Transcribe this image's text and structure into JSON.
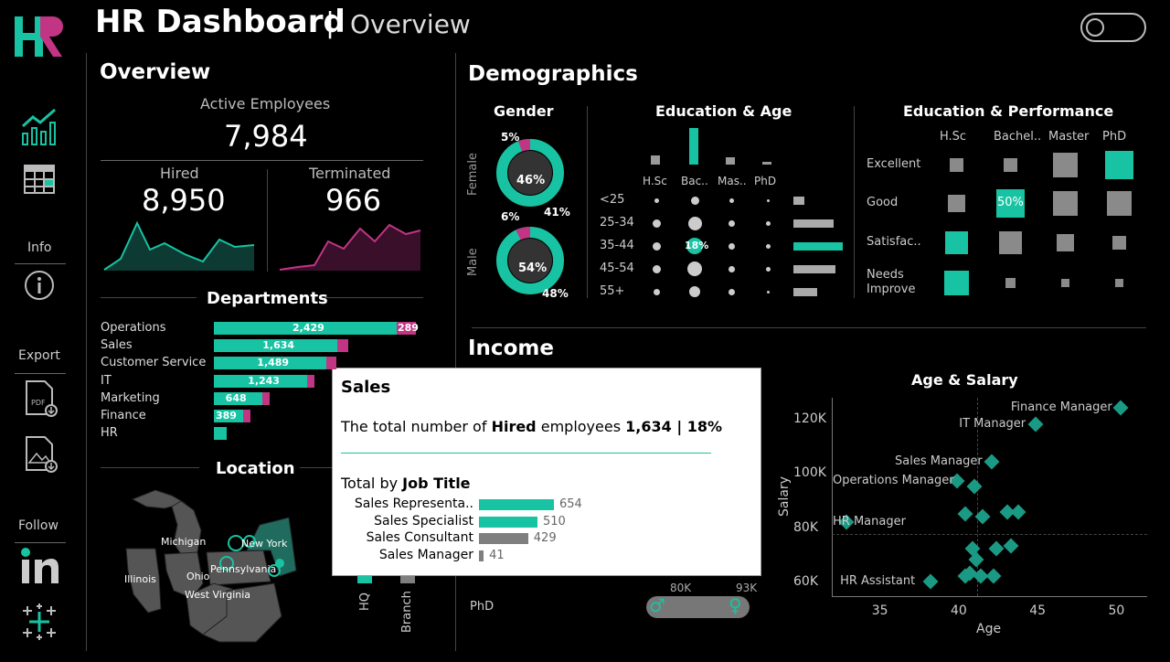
{
  "header": {
    "logo": "HR",
    "title": "HR Dashboard",
    "separator": "|",
    "subtitle": "Overview"
  },
  "sidebar": {
    "info_label": "Info",
    "export_label": "Export",
    "follow_label": "Follow",
    "icons": [
      "line-chart-icon",
      "table-icon",
      "info-icon",
      "pdf-icon",
      "image-download-icon",
      "linkedin-icon",
      "tableau-icon"
    ]
  },
  "overview": {
    "title": "Overview",
    "active_label": "Active Employees",
    "active_value": "7,984",
    "hired_label": "Hired",
    "hired_value": "8,950",
    "terminated_label": "Terminated",
    "terminated_value": "966"
  },
  "departments": {
    "title": "Departments",
    "items": [
      {
        "name": "Operations",
        "hired": 2429,
        "hired_label": "2,429",
        "terminated": 289,
        "terminated_label": "289"
      },
      {
        "name": "Sales",
        "hired": 1634,
        "hired_label": "1,634",
        "terminated": 170,
        "terminated_label": ""
      },
      {
        "name": "Customer Service",
        "hired": 1489,
        "hired_label": "1,489",
        "terminated": 160,
        "terminated_label": ""
      },
      {
        "name": "IT",
        "hired": 1243,
        "hired_label": "1,243",
        "terminated": 110,
        "terminated_label": ""
      },
      {
        "name": "Marketing",
        "hired": 648,
        "hired_label": "648",
        "terminated": 60,
        "terminated_label": ""
      },
      {
        "name": "Finance",
        "hired": 389,
        "hired_label": "389",
        "terminated": 40,
        "terminated_label": ""
      },
      {
        "name": "HR",
        "hired": 140,
        "hired_label": "",
        "terminated": 0,
        "terminated_label": ""
      }
    ]
  },
  "location": {
    "title": "Location",
    "states": [
      "Michigan",
      "New York",
      "Illinois",
      "Ohio",
      "Pennsylvania",
      "West Virginia"
    ],
    "hq_label": "HQ",
    "branch_label": "Branch"
  },
  "demographics": {
    "title": "Demographics",
    "gender": {
      "title": "Gender",
      "female_label": "Female",
      "male_label": "Male",
      "female": {
        "center": "46%",
        "small": "5%",
        "outer": "41%"
      },
      "male": {
        "center": "54%",
        "small": "6%",
        "outer": "48%"
      }
    },
    "edu_age": {
      "title": "Education & Age",
      "edu_cols": [
        "H.Sc",
        "Bac..",
        "Mas..",
        "PhD"
      ],
      "age_rows": [
        "<25",
        "25-34",
        "35-44",
        "45-54",
        "55+"
      ],
      "highlight": "18%"
    },
    "edu_perf": {
      "title": "Education & Performance",
      "cols": [
        "H.Sc",
        "Bachel..",
        "Master",
        "PhD"
      ],
      "rows": [
        "Excellent",
        "Good",
        "Satisfac..",
        "Needs Improve"
      ],
      "highlight": "50%"
    }
  },
  "income": {
    "title": "Income",
    "phd_label": "PhD",
    "slider_min": "80K",
    "slider_max": "93K",
    "male_symbol": "♂",
    "female_symbol": "♀"
  },
  "age_salary": {
    "title": "Age & Salary",
    "ylabel": "Salary",
    "xlabel": "Age",
    "yticks": [
      "120K",
      "100K",
      "80K",
      "60K"
    ],
    "xticks": [
      "35",
      "40",
      "45",
      "50"
    ],
    "labels": [
      "Finance Manager",
      "IT Manager",
      "Sales Manager",
      "Operations Manager",
      "HR Manager",
      "HR Assistant"
    ]
  },
  "chart_data": {
    "type": "scatter",
    "title": "Age & Salary",
    "xlabel": "Age",
    "ylabel": "Salary",
    "xlim": [
      32,
      52
    ],
    "ylim": [
      55000,
      128000
    ],
    "points": [
      {
        "x": 50.4,
        "y": 124000,
        "label": "Finance Manager"
      },
      {
        "x": 45,
        "y": 118000,
        "label": "IT Manager"
      },
      {
        "x": 42.2,
        "y": 104000,
        "label": "Sales Manager"
      },
      {
        "x": 40,
        "y": 97000,
        "label": "Operations Manager"
      },
      {
        "x": 33,
        "y": 82000,
        "label": "HR Manager"
      },
      {
        "x": 38.3,
        "y": 60000,
        "label": "HR Assistant"
      },
      {
        "x": 41.1,
        "y": 95000,
        "label": ""
      },
      {
        "x": 40.5,
        "y": 85000,
        "label": ""
      },
      {
        "x": 41.6,
        "y": 84000,
        "label": ""
      },
      {
        "x": 43.2,
        "y": 85500,
        "label": ""
      },
      {
        "x": 43.9,
        "y": 85500,
        "label": ""
      },
      {
        "x": 41,
        "y": 72000,
        "label": ""
      },
      {
        "x": 41.2,
        "y": 68000,
        "label": ""
      },
      {
        "x": 42.5,
        "y": 72000,
        "label": ""
      },
      {
        "x": 43.4,
        "y": 73000,
        "label": ""
      },
      {
        "x": 40.8,
        "y": 63000,
        "label": ""
      },
      {
        "x": 41.5,
        "y": 62000,
        "label": ""
      },
      {
        "x": 42.3,
        "y": 62000,
        "label": ""
      },
      {
        "x": 40.5,
        "y": 62000,
        "label": ""
      }
    ]
  },
  "tooltip": {
    "title": "Sales",
    "line_prefix": "The total number of",
    "line_bold": "Hired",
    "line_mid": "employees",
    "line_value": "1,634 | 18%",
    "sub_prefix": "Total by",
    "sub_bold": "Job Title",
    "rows": [
      {
        "label": "Sales Representa..",
        "value": 654,
        "text": "654",
        "color": "#17c3a2"
      },
      {
        "label": "Sales Specialist",
        "value": 510,
        "text": "510",
        "color": "#17c3a2"
      },
      {
        "label": "Sales Consultant",
        "value": 429,
        "text": "429",
        "color": "#7f7f7f"
      },
      {
        "label": "Sales Manager",
        "value": 41,
        "text": "41",
        "color": "#7f7f7f"
      }
    ]
  },
  "colors": {
    "teal": "#17c3a2",
    "magenta": "#c13584",
    "grey": "#7f7f7f"
  }
}
